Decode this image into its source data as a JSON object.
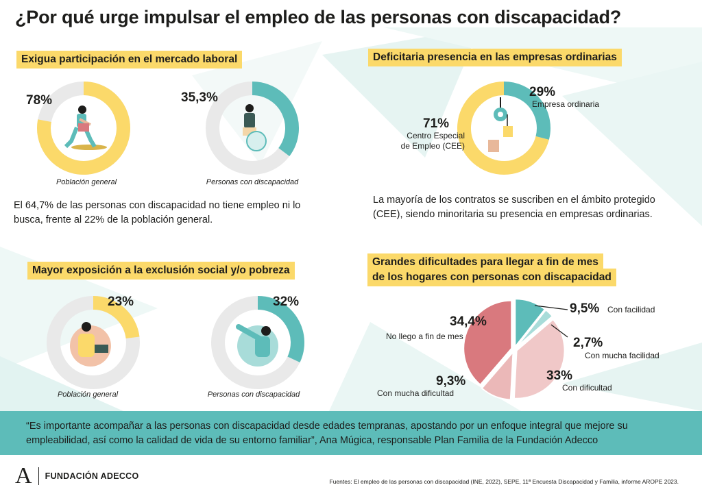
{
  "title": "¿Por qué urge impulsar el empleo de las personas con discapacidad?",
  "colors": {
    "yellow": "#fbd96a",
    "teal": "#5dbcb9",
    "grey": "#e9e9e9",
    "rose": "#d9797e",
    "pink": "#f0c8c8",
    "light_teal": "#a8dcd9"
  },
  "section1": {
    "heading": "Exigua participación en el mercado laboral",
    "general_value": "78%",
    "general_caption": "Población general",
    "disc_value": "35,3%",
    "disc_caption": "Personas con discapacidad",
    "paragraph": "El 64,7% de las personas con discapacidad no tiene empleo ni lo busca,  frente al 22% de la población general."
  },
  "section2": {
    "heading": "Deficitaria presencia en las empresas ordinarias",
    "ordinary_value": "29%",
    "ordinary_label": "Empresa ordinaria",
    "cee_value": "71%",
    "cee_label_1": "Centro Especial",
    "cee_label_2": "de Empleo (CEE)",
    "paragraph": "La mayoría de los contratos se suscriben en el ámbito protegido (CEE), siendo minoritaria su presencia en empresas ordinarias."
  },
  "section3": {
    "heading": "Mayor exposición a la exclusión social y/o pobreza",
    "general_value": "23%",
    "general_caption": "Población general",
    "disc_value": "32%",
    "disc_caption": "Personas con discapacidad"
  },
  "section4": {
    "heading_1": "Grandes dificultades para llegar a fin de mes",
    "heading_2": "de los hogares con personas con discapacidad",
    "slices": [
      {
        "value_label": "9,5%",
        "name": "Con facilidad"
      },
      {
        "value_label": "2,7%",
        "name": "Con mucha facilidad"
      },
      {
        "value_label": "33%",
        "name": "Con dificultad"
      },
      {
        "value_label": "9,3%",
        "name": "Con mucha dificultad"
      },
      {
        "value_label": "34,4%",
        "name": "No llego a fin de mes"
      }
    ]
  },
  "quote": "“Es importante acompañar a las personas con discapacidad desde edades tempranas, apostando por un enfoque integral que mejore su empleabilidad, así como la calidad de vida de su entorno familiar”, Ana Múgica, responsable Plan Familia de la Fundación Adecco",
  "footer": {
    "logo_letter": "A",
    "logo_text": "FUNDACIÓN ADECCO",
    "sources": "Fuentes: El empleo de las personas con discapacidad (INE, 2022), SEPE, 11ª Encuesta Discapacidad y Familia, informe AROPE 2023."
  },
  "chart_data": [
    {
      "type": "pie",
      "title": "Exigua participación en el mercado laboral",
      "categories": [
        "Población general"
      ],
      "values": [
        78
      ]
    },
    {
      "type": "pie",
      "title": "Exigua participación en el mercado laboral",
      "categories": [
        "Personas con discapacidad"
      ],
      "values": [
        35.3
      ]
    },
    {
      "type": "pie",
      "title": "Deficitaria presencia en las empresas ordinarias",
      "categories": [
        "Empresa ordinaria",
        "Centro Especial de Empleo (CEE)"
      ],
      "values": [
        29,
        71
      ]
    },
    {
      "type": "pie",
      "title": "Mayor exposición a la exclusión social y/o pobreza",
      "categories": [
        "Población general"
      ],
      "values": [
        23
      ]
    },
    {
      "type": "pie",
      "title": "Mayor exposición a la exclusión social y/o pobreza",
      "categories": [
        "Personas con discapacidad"
      ],
      "values": [
        32
      ]
    },
    {
      "type": "pie",
      "title": "Grandes dificultades para llegar a fin de mes de los hogares con personas con discapacidad",
      "categories": [
        "Con facilidad",
        "Con mucha facilidad",
        "Con dificultad",
        "Con mucha dificultad",
        "No llego a fin de mes"
      ],
      "values": [
        9.5,
        2.7,
        33,
        9.3,
        34.4
      ]
    }
  ]
}
